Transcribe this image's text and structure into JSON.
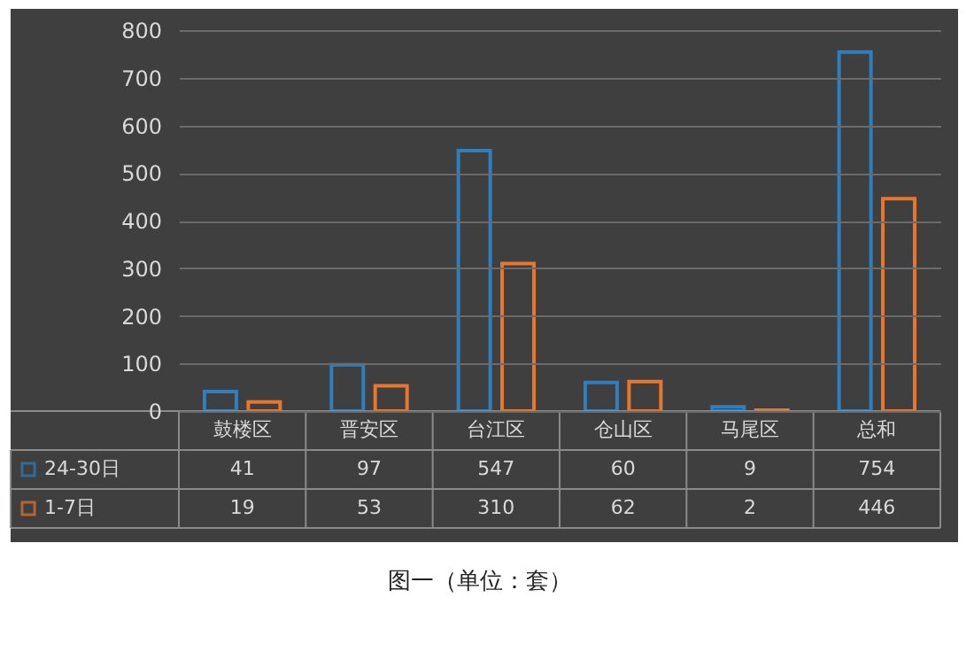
{
  "chart_data": {
    "type": "bar",
    "categories": [
      "鼓楼区",
      "晋安区",
      "台江区",
      "仓山区",
      "马尾区",
      "总和"
    ],
    "series": [
      {
        "name": "24-30日",
        "color": "#2f7fbf",
        "values": [
          41,
          97,
          547,
          60,
          9,
          754
        ]
      },
      {
        "name": "1-7日",
        "color": "#e8762d",
        "values": [
          19,
          53,
          310,
          62,
          2,
          446
        ]
      }
    ],
    "ylim": [
      0,
      800
    ],
    "yticks": [
      0,
      100,
      200,
      300,
      400,
      500,
      600,
      700,
      800
    ],
    "grid": "y",
    "legend": "bottom",
    "data_labels": true,
    "annotations": [
      "图一（单位：套）"
    ]
  }
}
